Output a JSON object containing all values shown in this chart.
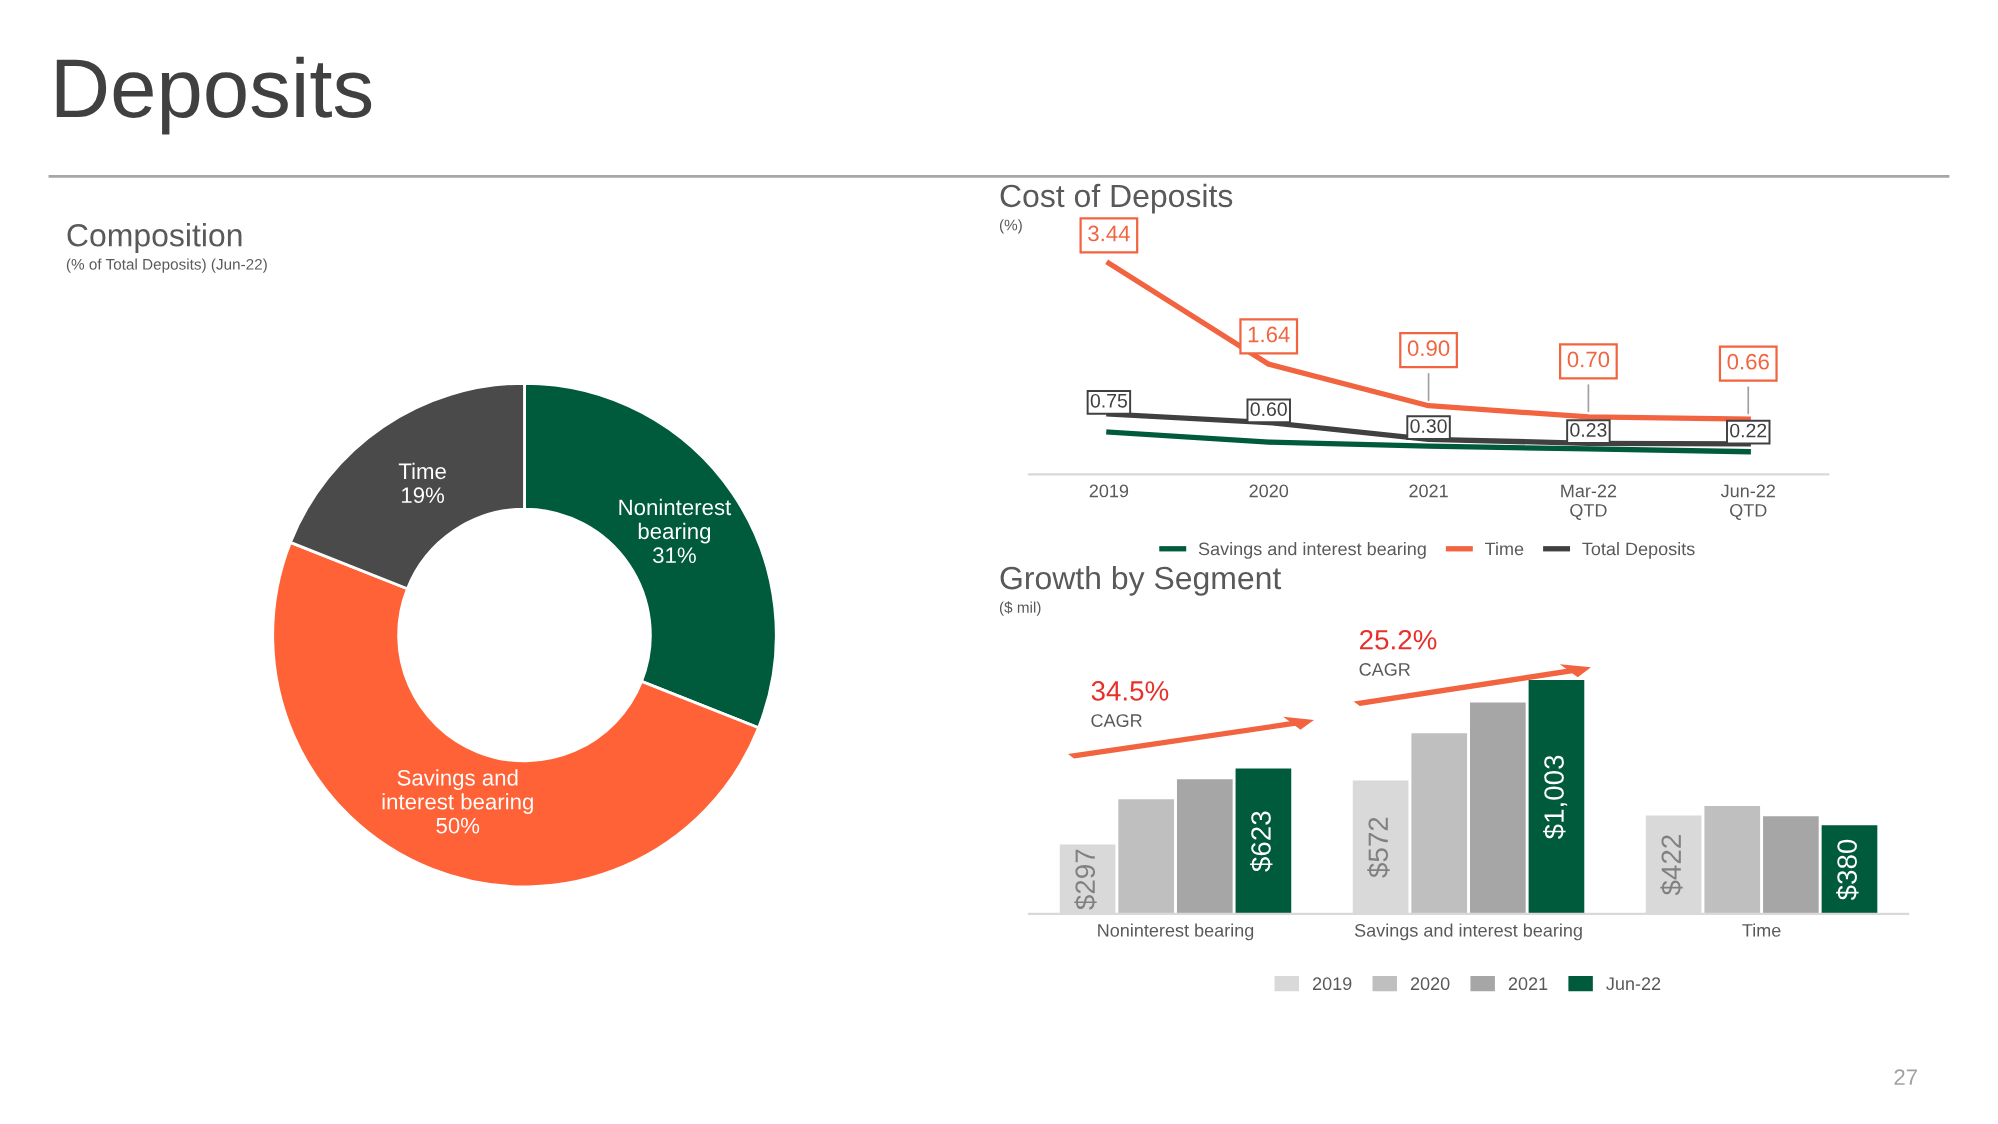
{
  "chart_data": [
    {
      "type": "donut",
      "title": "Composition",
      "subtitle": "(% of Total Deposits) (Jun-22)",
      "categories": [
        "Noninterest\nbearing",
        "Savings and\ninterest bearing",
        "Time"
      ],
      "values": [
        31,
        50,
        19
      ],
      "value_labels": [
        "31%",
        "50%",
        "19%"
      ],
      "colors": [
        "#005a3c",
        "#ff6236",
        "#4a4a4a"
      ],
      "annotations": [
        "Deposits",
        "27"
      ],
      "legend": false
    },
    {
      "type": "line",
      "title": "Cost of Deposits",
      "subtitle": "(%)",
      "categories": [
        "2019",
        "2020",
        "2021",
        "Mar-22\nQTD",
        "Jun-22\nQTD"
      ],
      "series": [
        {
          "name": "Savings and interest bearing",
          "color": "#005a3c",
          "values": [
            0.43,
            0.25,
            0.18,
            0.13,
            0.08
          ]
        },
        {
          "name": "Time",
          "color": "#f26440",
          "values": [
            3.44,
            1.64,
            0.9,
            0.7,
            0.66
          ],
          "value_labels": [
            "3.44",
            "1.64",
            "0.90",
            "0.70",
            "0.66"
          ]
        },
        {
          "name": "Total Deposits",
          "color": "#404040",
          "values": [
            0.75,
            0.6,
            0.3,
            0.23,
            0.22
          ],
          "value_labels": [
            "0.75",
            "0.60",
            "0.30",
            "0.23",
            "0.22"
          ]
        }
      ],
      "tick_labels": "x",
      "grid": false,
      "legend": "bottom",
      "line_style": "solid"
    },
    {
      "type": "bar",
      "title": "Growth by Segment",
      "subtitle": "($ mil)",
      "categories": [
        "Noninterest bearing",
        "Savings and interest bearing",
        "Time"
      ],
      "series": [
        {
          "name": "2019",
          "color": "#d9d9d9",
          "values": [
            297,
            572,
            422
          ],
          "value_labels": [
            "$297",
            "$572",
            "$422"
          ]
        },
        {
          "name": "2020",
          "color": "#bfbfbf",
          "values": [
            492,
            775,
            463
          ]
        },
        {
          "name": "2021",
          "color": "#a6a6a6",
          "values": [
            577,
            907,
            419
          ]
        },
        {
          "name": "Jun-22",
          "color": "#005a3c",
          "values": [
            623,
            1003,
            380
          ],
          "value_labels": [
            "$623",
            "$1,003",
            "$380"
          ]
        }
      ],
      "tick_labels": "x",
      "grid": false,
      "legend": "bottom",
      "annotations": [
        "34.5%",
        "CAGR",
        "25.2%",
        "CAGR"
      ]
    }
  ]
}
